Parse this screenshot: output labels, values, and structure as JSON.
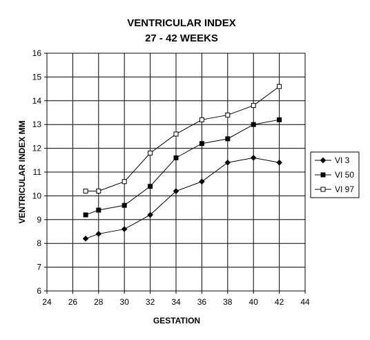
{
  "chart_data": {
    "type": "line",
    "title": [
      "VENTRICULAR INDEX",
      "27 - 42 WEEKS"
    ],
    "xlabel": "GESTATION",
    "ylabel": "VENTRICULAR INDEX MM",
    "xlim": [
      24,
      44
    ],
    "ylim": [
      6,
      16
    ],
    "xticks": [
      "24",
      "26",
      "28",
      "30",
      "32",
      "34",
      "36",
      "38",
      "40",
      "42",
      "44"
    ],
    "yticks": [
      "6",
      "7",
      "8",
      "9",
      "10",
      "11",
      "12",
      "13",
      "14",
      "15",
      "16"
    ],
    "grid": "major gridlines on both axes, every 2 weeks on x and every 1 mm on y",
    "legend_position": "right",
    "x": [
      27,
      28,
      30,
      32,
      34,
      36,
      38,
      40,
      42
    ],
    "series": [
      {
        "name": "VI 3",
        "marker": "diamond",
        "values": [
          8.2,
          8.4,
          8.6,
          9.2,
          10.2,
          10.6,
          11.4,
          11.6,
          11.4
        ]
      },
      {
        "name": "VI 50",
        "marker": "filled-square",
        "values": [
          9.2,
          9.4,
          9.6,
          10.4,
          11.6,
          12.2,
          12.4,
          13.0,
          13.2
        ]
      },
      {
        "name": "VI 97",
        "marker": "open-square",
        "values": [
          10.2,
          10.2,
          10.6,
          11.8,
          12.6,
          13.2,
          13.4,
          13.8,
          14.6
        ]
      }
    ]
  }
}
